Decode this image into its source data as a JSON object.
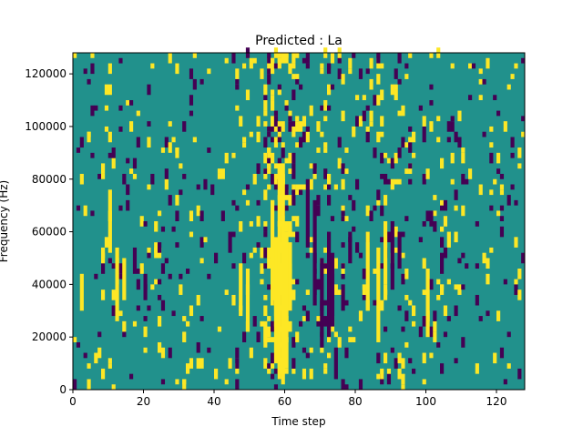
{
  "chart_data": {
    "type": "heatmap",
    "title": "Predicted : La",
    "xlabel": "Time step",
    "ylabel": "Frequency (Hz)",
    "xlim": [
      0,
      128
    ],
    "ylim": [
      0,
      128000
    ],
    "x_ticks": [
      "0",
      "20",
      "40",
      "60",
      "80",
      "100",
      "120"
    ],
    "y_ticks": [
      "0",
      "20000",
      "40000",
      "60000",
      "80000",
      "100000",
      "120000"
    ],
    "n_time_steps": 128,
    "n_freq_bins": 64,
    "value_levels": [
      -1,
      0,
      1
    ],
    "colors": {
      "low": "#440154",
      "mid": "#21918c",
      "high": "#fde725"
    },
    "grid": false,
    "high_cells_sample": [
      [
        57,
        10000,
        58000
      ],
      [
        58,
        4000,
        86000
      ],
      [
        59,
        2000,
        86000
      ],
      [
        60,
        8000,
        60000
      ],
      [
        56,
        34000,
        72000
      ],
      [
        61,
        30000,
        56000
      ],
      [
        54,
        16000,
        26000
      ],
      [
        2,
        30000,
        44000
      ],
      [
        10,
        52000,
        76000
      ],
      [
        12,
        26000,
        54000
      ],
      [
        14,
        34000,
        50000
      ],
      [
        47,
        28000,
        48000
      ],
      [
        49,
        22000,
        46000
      ],
      [
        83,
        30000,
        60000
      ],
      [
        86,
        18000,
        54000
      ],
      [
        88,
        40000,
        64000
      ],
      [
        100,
        20000,
        46000
      ],
      [
        106,
        54000,
        60000
      ]
    ],
    "low_cells_sample": [
      [
        66,
        54000,
        80000
      ],
      [
        68,
        32000,
        72000
      ],
      [
        70,
        16000,
        50000
      ],
      [
        72,
        20000,
        60000
      ],
      [
        73,
        24000,
        52000
      ],
      [
        74,
        4000,
        16000
      ],
      [
        76,
        30000,
        40000
      ],
      [
        90,
        38000,
        64000
      ],
      [
        92,
        46000,
        60000
      ],
      [
        78,
        48000,
        60000
      ],
      [
        101,
        62000,
        68000
      ],
      [
        104,
        44000,
        52000
      ],
      [
        20,
        34000,
        44000
      ],
      [
        17,
        44000,
        54000
      ],
      [
        44,
        52000,
        60000
      ]
    ]
  }
}
